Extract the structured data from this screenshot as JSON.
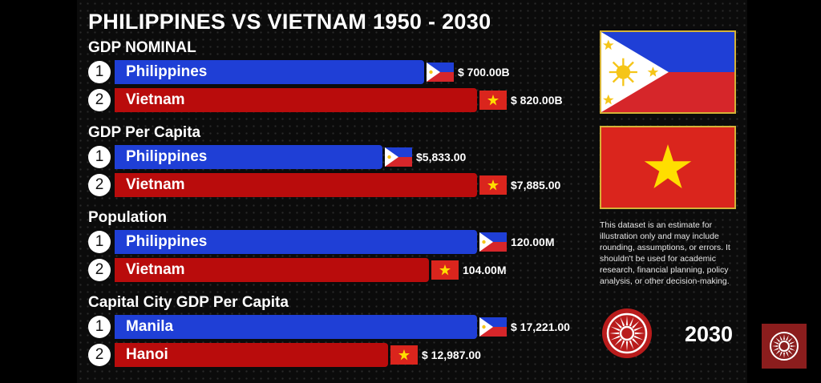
{
  "title": "PHILIPPINES VS VIETNAM 1950 - 2030",
  "year": "2030",
  "disclaimer": "This dataset is an estimate for illustration only and may include rounding, assumptions, or errors. It shouldn't be used for academic research, financial planning, policy analysis, or other decision-making.",
  "colors": {
    "philippines": "#1f3fd6",
    "vietnam": "#b90c0c",
    "frame": "#d4b237"
  },
  "icons": {
    "logo": "sun-emblem-icon",
    "corner": "sun-emblem-icon"
  },
  "chart_data": [
    {
      "type": "bar",
      "title": "GDP NOMINAL",
      "categories": [
        "Philippines",
        "Vietnam"
      ],
      "ranks": [
        "1",
        "2"
      ],
      "values": [
        700.0,
        820.0
      ],
      "labels": [
        "$ 700.00B",
        "$ 820.00B"
      ],
      "flags": [
        "ph",
        "vn"
      ],
      "colors": [
        "#1f3fd6",
        "#b90c0c"
      ]
    },
    {
      "type": "bar",
      "title": "GDP Per Capita",
      "categories": [
        "Philippines",
        "Vietnam"
      ],
      "ranks": [
        "1",
        "2"
      ],
      "values": [
        5833.0,
        7885.0
      ],
      "labels": [
        "$5,833.00",
        "$7,885.00"
      ],
      "flags": [
        "ph",
        "vn"
      ],
      "colors": [
        "#1f3fd6",
        "#b90c0c"
      ]
    },
    {
      "type": "bar",
      "title": "Population",
      "categories": [
        "Philippines",
        "Vietnam"
      ],
      "ranks": [
        "1",
        "2"
      ],
      "values": [
        120.0,
        104.0
      ],
      "labels": [
        "120.00M",
        "104.00M"
      ],
      "flags": [
        "ph",
        "vn"
      ],
      "colors": [
        "#1f3fd6",
        "#b90c0c"
      ]
    },
    {
      "type": "bar",
      "title": "Capital City GDP Per Capita",
      "categories": [
        "Manila",
        "Hanoi"
      ],
      "ranks": [
        "1",
        "2"
      ],
      "values": [
        17221.0,
        12987.0
      ],
      "labels": [
        "$ 17,221.00",
        "$ 12,987.00"
      ],
      "flags": [
        "ph",
        "vn"
      ],
      "colors": [
        "#1f3fd6",
        "#b90c0c"
      ]
    }
  ]
}
